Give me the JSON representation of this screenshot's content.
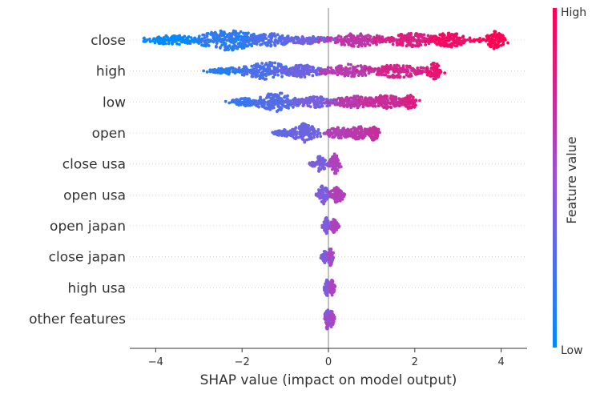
{
  "chart_data": {
    "type": "scatter",
    "subtype": "shap-beeswarm",
    "xlabel": "SHAP value (impact on model output)",
    "xlim": [
      -4.6,
      4.6
    ],
    "xticks": [
      -4,
      -2,
      0,
      2,
      4
    ],
    "xtick_labels": [
      "−4",
      "−2",
      "0",
      "2",
      "4"
    ],
    "colorbar": {
      "label": "Feature value",
      "high_label": "High",
      "low_label": "Low",
      "low_color": "#008bfb",
      "high_color": "#ff0052",
      "mid_color": "#9b52d5"
    },
    "features": [
      {
        "name": "close",
        "min": -4.3,
        "max": 4.0,
        "clusters": [
          {
            "x": -3.6,
            "w": 0.7,
            "h": 0.35,
            "lo": -3.9,
            "hi": -3.3
          },
          {
            "x": -2.3,
            "w": 0.9,
            "h": 0.75,
            "lo": -2.9,
            "hi": -1.7
          },
          {
            "x": -1.3,
            "w": 0.6,
            "h": 0.5,
            "lo": -1.6,
            "hi": -1.0
          },
          {
            "x": -0.5,
            "w": 0.6,
            "h": 0.3,
            "lo": -0.9,
            "hi": -0.2
          },
          {
            "x": 0.7,
            "w": 0.8,
            "h": 0.5,
            "lo": 0.4,
            "hi": 1.0
          },
          {
            "x": 1.9,
            "w": 0.8,
            "h": 0.5,
            "lo": 1.6,
            "hi": 2.3
          },
          {
            "x": 2.8,
            "w": 0.5,
            "h": 0.55,
            "lo": 2.6,
            "hi": 3.0
          },
          {
            "x": 3.85,
            "w": 0.25,
            "h": 0.65,
            "lo": 3.6,
            "hi": 4.0
          }
        ]
      },
      {
        "name": "high",
        "min": -2.75,
        "max": 2.6,
        "clusters": [
          {
            "x": -2.3,
            "w": 0.5,
            "h": 0.25,
            "lo": -2.6,
            "hi": -2.2
          },
          {
            "x": -1.4,
            "w": 0.7,
            "h": 0.65,
            "lo": -1.8,
            "hi": -1.0
          },
          {
            "x": -0.6,
            "w": 0.6,
            "h": 0.45,
            "lo": -0.9,
            "hi": -0.3
          },
          {
            "x": 0.5,
            "w": 0.7,
            "h": 0.5,
            "lo": 0.2,
            "hi": 0.8
          },
          {
            "x": 1.6,
            "w": 0.7,
            "h": 0.5,
            "lo": 1.3,
            "hi": 1.9
          },
          {
            "x": 2.45,
            "w": 0.2,
            "h": 0.6,
            "lo": 2.3,
            "hi": 2.6
          }
        ]
      },
      {
        "name": "low",
        "min": -2.15,
        "max": 2.0,
        "clusters": [
          {
            "x": -1.9,
            "w": 0.4,
            "h": 0.3,
            "lo": -2.1,
            "hi": -1.8
          },
          {
            "x": -1.2,
            "w": 0.6,
            "h": 0.7,
            "lo": -1.6,
            "hi": -0.9
          },
          {
            "x": -0.3,
            "w": 0.6,
            "h": 0.4,
            "lo": -0.6,
            "hi": 0.0
          },
          {
            "x": 0.6,
            "w": 0.6,
            "h": 0.45,
            "lo": 0.3,
            "hi": 0.9
          },
          {
            "x": 1.3,
            "w": 0.6,
            "h": 0.5,
            "lo": 1.0,
            "hi": 1.6
          },
          {
            "x": 1.9,
            "w": 0.2,
            "h": 0.55,
            "lo": 1.7,
            "hi": 2.0
          }
        ]
      },
      {
        "name": "open",
        "min": -1.25,
        "max": 1.2,
        "clusters": [
          {
            "x": -1.0,
            "w": 0.3,
            "h": 0.25,
            "lo": -1.1,
            "hi": -0.8
          },
          {
            "x": -0.55,
            "w": 0.35,
            "h": 0.7,
            "lo": -0.8,
            "hi": -0.3
          },
          {
            "x": 0.25,
            "w": 0.4,
            "h": 0.4,
            "lo": 0.1,
            "hi": 0.5
          },
          {
            "x": 0.7,
            "w": 0.3,
            "h": 0.5,
            "lo": 0.5,
            "hi": 0.9
          },
          {
            "x": 1.05,
            "w": 0.15,
            "h": 0.55,
            "lo": 0.9,
            "hi": 1.2
          }
        ]
      },
      {
        "name": "close usa",
        "min": -0.5,
        "max": 0.3,
        "clusters": [
          {
            "x": -0.2,
            "w": 0.2,
            "h": 0.55,
            "lo": -0.4,
            "hi": -0.1
          },
          {
            "x": 0.15,
            "w": 0.15,
            "h": 0.75,
            "lo": 0.0,
            "hi": 0.3
          }
        ]
      },
      {
        "name": "open usa",
        "min": -0.3,
        "max": 0.42,
        "clusters": [
          {
            "x": -0.12,
            "w": 0.15,
            "h": 0.7,
            "lo": -0.3,
            "hi": 0.0
          },
          {
            "x": 0.2,
            "w": 0.18,
            "h": 0.6,
            "lo": 0.1,
            "hi": 0.4
          }
        ]
      },
      {
        "name": "open japan",
        "min": -0.15,
        "max": 0.25,
        "clusters": [
          {
            "x": -0.05,
            "w": 0.07,
            "h": 0.6,
            "lo": -0.15,
            "hi": 0.0
          },
          {
            "x": 0.13,
            "w": 0.1,
            "h": 0.5,
            "lo": 0.05,
            "hi": 0.2
          }
        ]
      },
      {
        "name": "close japan",
        "min": -0.18,
        "max": 0.12,
        "clusters": [
          {
            "x": -0.08,
            "w": 0.07,
            "h": 0.45,
            "lo": -0.2,
            "hi": -0.05
          },
          {
            "x": 0.05,
            "w": 0.07,
            "h": 0.7,
            "lo": -0.05,
            "hi": 0.1
          }
        ]
      },
      {
        "name": "high usa",
        "min": -0.1,
        "max": 0.15,
        "clusters": [
          {
            "x": -0.03,
            "w": 0.06,
            "h": 0.7,
            "lo": -0.1,
            "hi": 0.0
          },
          {
            "x": 0.08,
            "w": 0.06,
            "h": 0.6,
            "lo": 0.0,
            "hi": 0.15
          }
        ]
      },
      {
        "name": "other features",
        "min": -0.1,
        "max": 0.15,
        "clusters": [
          {
            "x": -0.02,
            "w": 0.08,
            "h": 0.8,
            "lo": -0.1,
            "hi": 0.1
          },
          {
            "x": 0.07,
            "w": 0.07,
            "h": 0.6,
            "lo": -0.05,
            "hi": 0.1
          }
        ]
      }
    ]
  }
}
